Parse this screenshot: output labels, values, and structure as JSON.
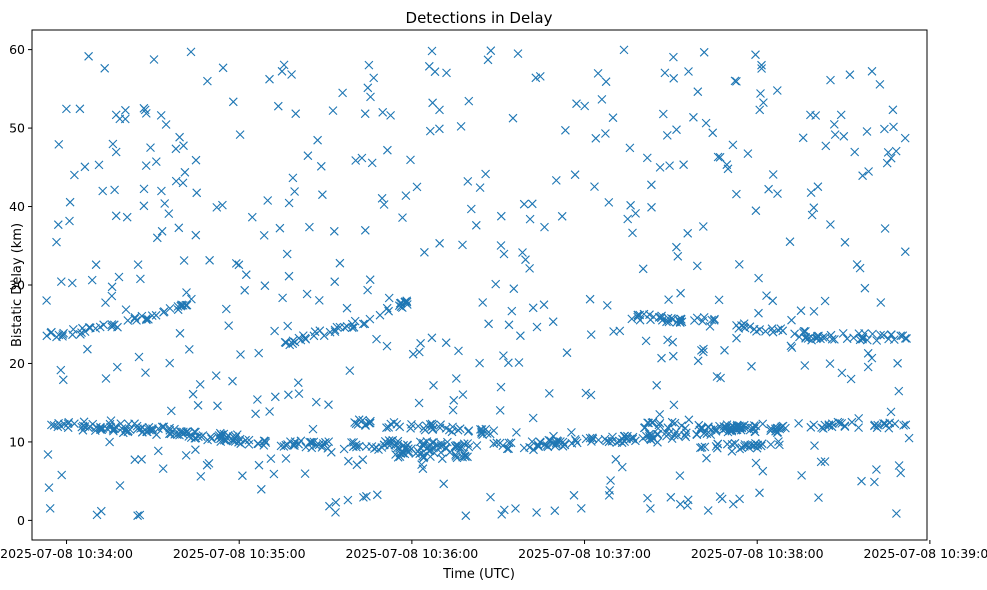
{
  "chart_data": {
    "type": "scatter",
    "title": "Detections in Delay",
    "xlabel": "Time (UTC)",
    "ylabel": "Bistatic Delay (km)",
    "marker": "x",
    "color": "#1f77b4",
    "grid": false,
    "legend": "none",
    "xlim": [
      "2025-07-08 10:33:48",
      "2025-07-08 10:38:59"
    ],
    "ylim": [
      -2.5,
      62.5
    ],
    "x_ticks": [
      "2025-07-08 10:34:00",
      "2025-07-08 10:35:00",
      "2025-07-08 10:36:00",
      "2025-07-08 10:37:00",
      "2025-07-08 10:38:00",
      "2025-07-08 10:39:00"
    ],
    "y_ticks": [
      0,
      10,
      20,
      30,
      40,
      50,
      60
    ],
    "time_range": [
      "2025-07-08 10:33:53",
      "2025-07-08 10:38:53"
    ],
    "tracks": [
      {
        "points": [
          [
            "2025-07-08 10:33:53",
            12.3
          ],
          [
            "2025-07-08 10:34:30",
            11.8
          ],
          [
            "2025-07-08 10:35:00",
            10.0
          ],
          [
            "2025-07-08 10:35:40",
            9.5
          ],
          [
            "2025-07-08 10:36:00",
            9.2
          ],
          [
            "2025-07-08 10:36:30",
            9.5
          ],
          [
            "2025-07-08 10:37:00",
            10.0
          ],
          [
            "2025-07-08 10:37:30",
            10.8
          ],
          [
            "2025-07-08 10:38:00",
            12.0
          ],
          [
            "2025-07-08 10:38:53",
            12.2
          ]
        ]
      },
      {
        "points": [
          [
            "2025-07-08 10:34:00",
            12.0
          ],
          [
            "2025-07-08 10:34:40",
            11.0
          ],
          [
            "2025-07-08 10:35:00",
            10.5
          ]
        ]
      },
      {
        "points": [
          [
            "2025-07-08 10:35:40",
            12.5
          ],
          [
            "2025-07-08 10:36:10",
            11.8
          ],
          [
            "2025-07-08 10:36:30",
            11.2
          ]
        ]
      },
      {
        "points": [
          [
            "2025-07-08 10:35:50",
            10.0
          ],
          [
            "2025-07-08 10:36:20",
            9.5
          ]
        ]
      },
      {
        "points": [
          [
            "2025-07-08 10:35:50",
            8.5
          ],
          [
            "2025-07-08 10:36:20",
            8.2
          ]
        ]
      },
      {
        "points": [
          [
            "2025-07-08 10:37:20",
            12.2
          ],
          [
            "2025-07-08 10:37:40",
            12.0
          ],
          [
            "2025-07-08 10:38:10",
            11.5
          ]
        ]
      },
      {
        "points": [
          [
            "2025-07-08 10:37:40",
            9.2
          ],
          [
            "2025-07-08 10:38:10",
            9.8
          ]
        ]
      },
      {
        "points": [
          [
            "2025-07-08 10:33:53",
            23.5
          ],
          [
            "2025-07-08 10:34:20",
            25.0
          ],
          [
            "2025-07-08 10:34:45",
            28.0
          ]
        ]
      },
      {
        "points": [
          [
            "2025-07-08 10:35:15",
            22.5
          ],
          [
            "2025-07-08 10:35:40",
            25.0
          ],
          [
            "2025-07-08 10:36:00",
            28.0
          ]
        ]
      },
      {
        "points": [
          [
            "2025-07-08 10:37:15",
            26.0
          ],
          [
            "2025-07-08 10:37:40",
            25.5
          ],
          [
            "2025-07-08 10:38:20",
            23.5
          ],
          [
            "2025-07-08 10:38:53",
            23.3
          ]
        ]
      }
    ],
    "track_point_count": 680,
    "scattered_point_count": 480
  }
}
